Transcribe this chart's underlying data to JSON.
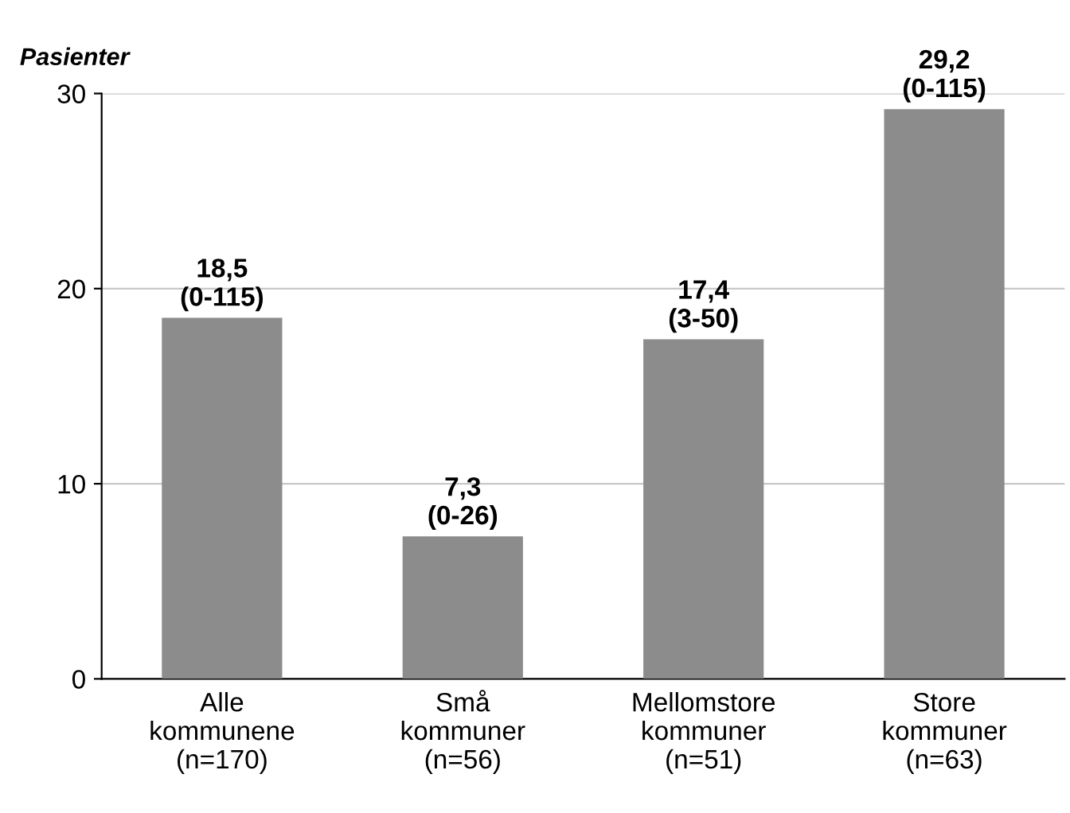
{
  "chart_data": {
    "type": "bar",
    "ylabel": "Pasienter",
    "categories": [
      "Alle\nkommunene\n(n=170)",
      "Små\nkommuner\n(n=56)",
      "Mellomstore\nkommuner\n(n=51)",
      "Store\nkommuner\n(n=63)"
    ],
    "values": [
      18.5,
      7.3,
      17.4,
      29.2
    ],
    "value_labels": [
      "18,5\n(0-115)",
      "7,3\n(0-26)",
      "17,4\n(3-50)",
      "29,2\n(0-115)"
    ],
    "color": "#8c8c8c",
    "ylim": [
      0,
      30
    ],
    "yticks": [
      0,
      10,
      20,
      30
    ],
    "grid": "y",
    "legend": false
  }
}
